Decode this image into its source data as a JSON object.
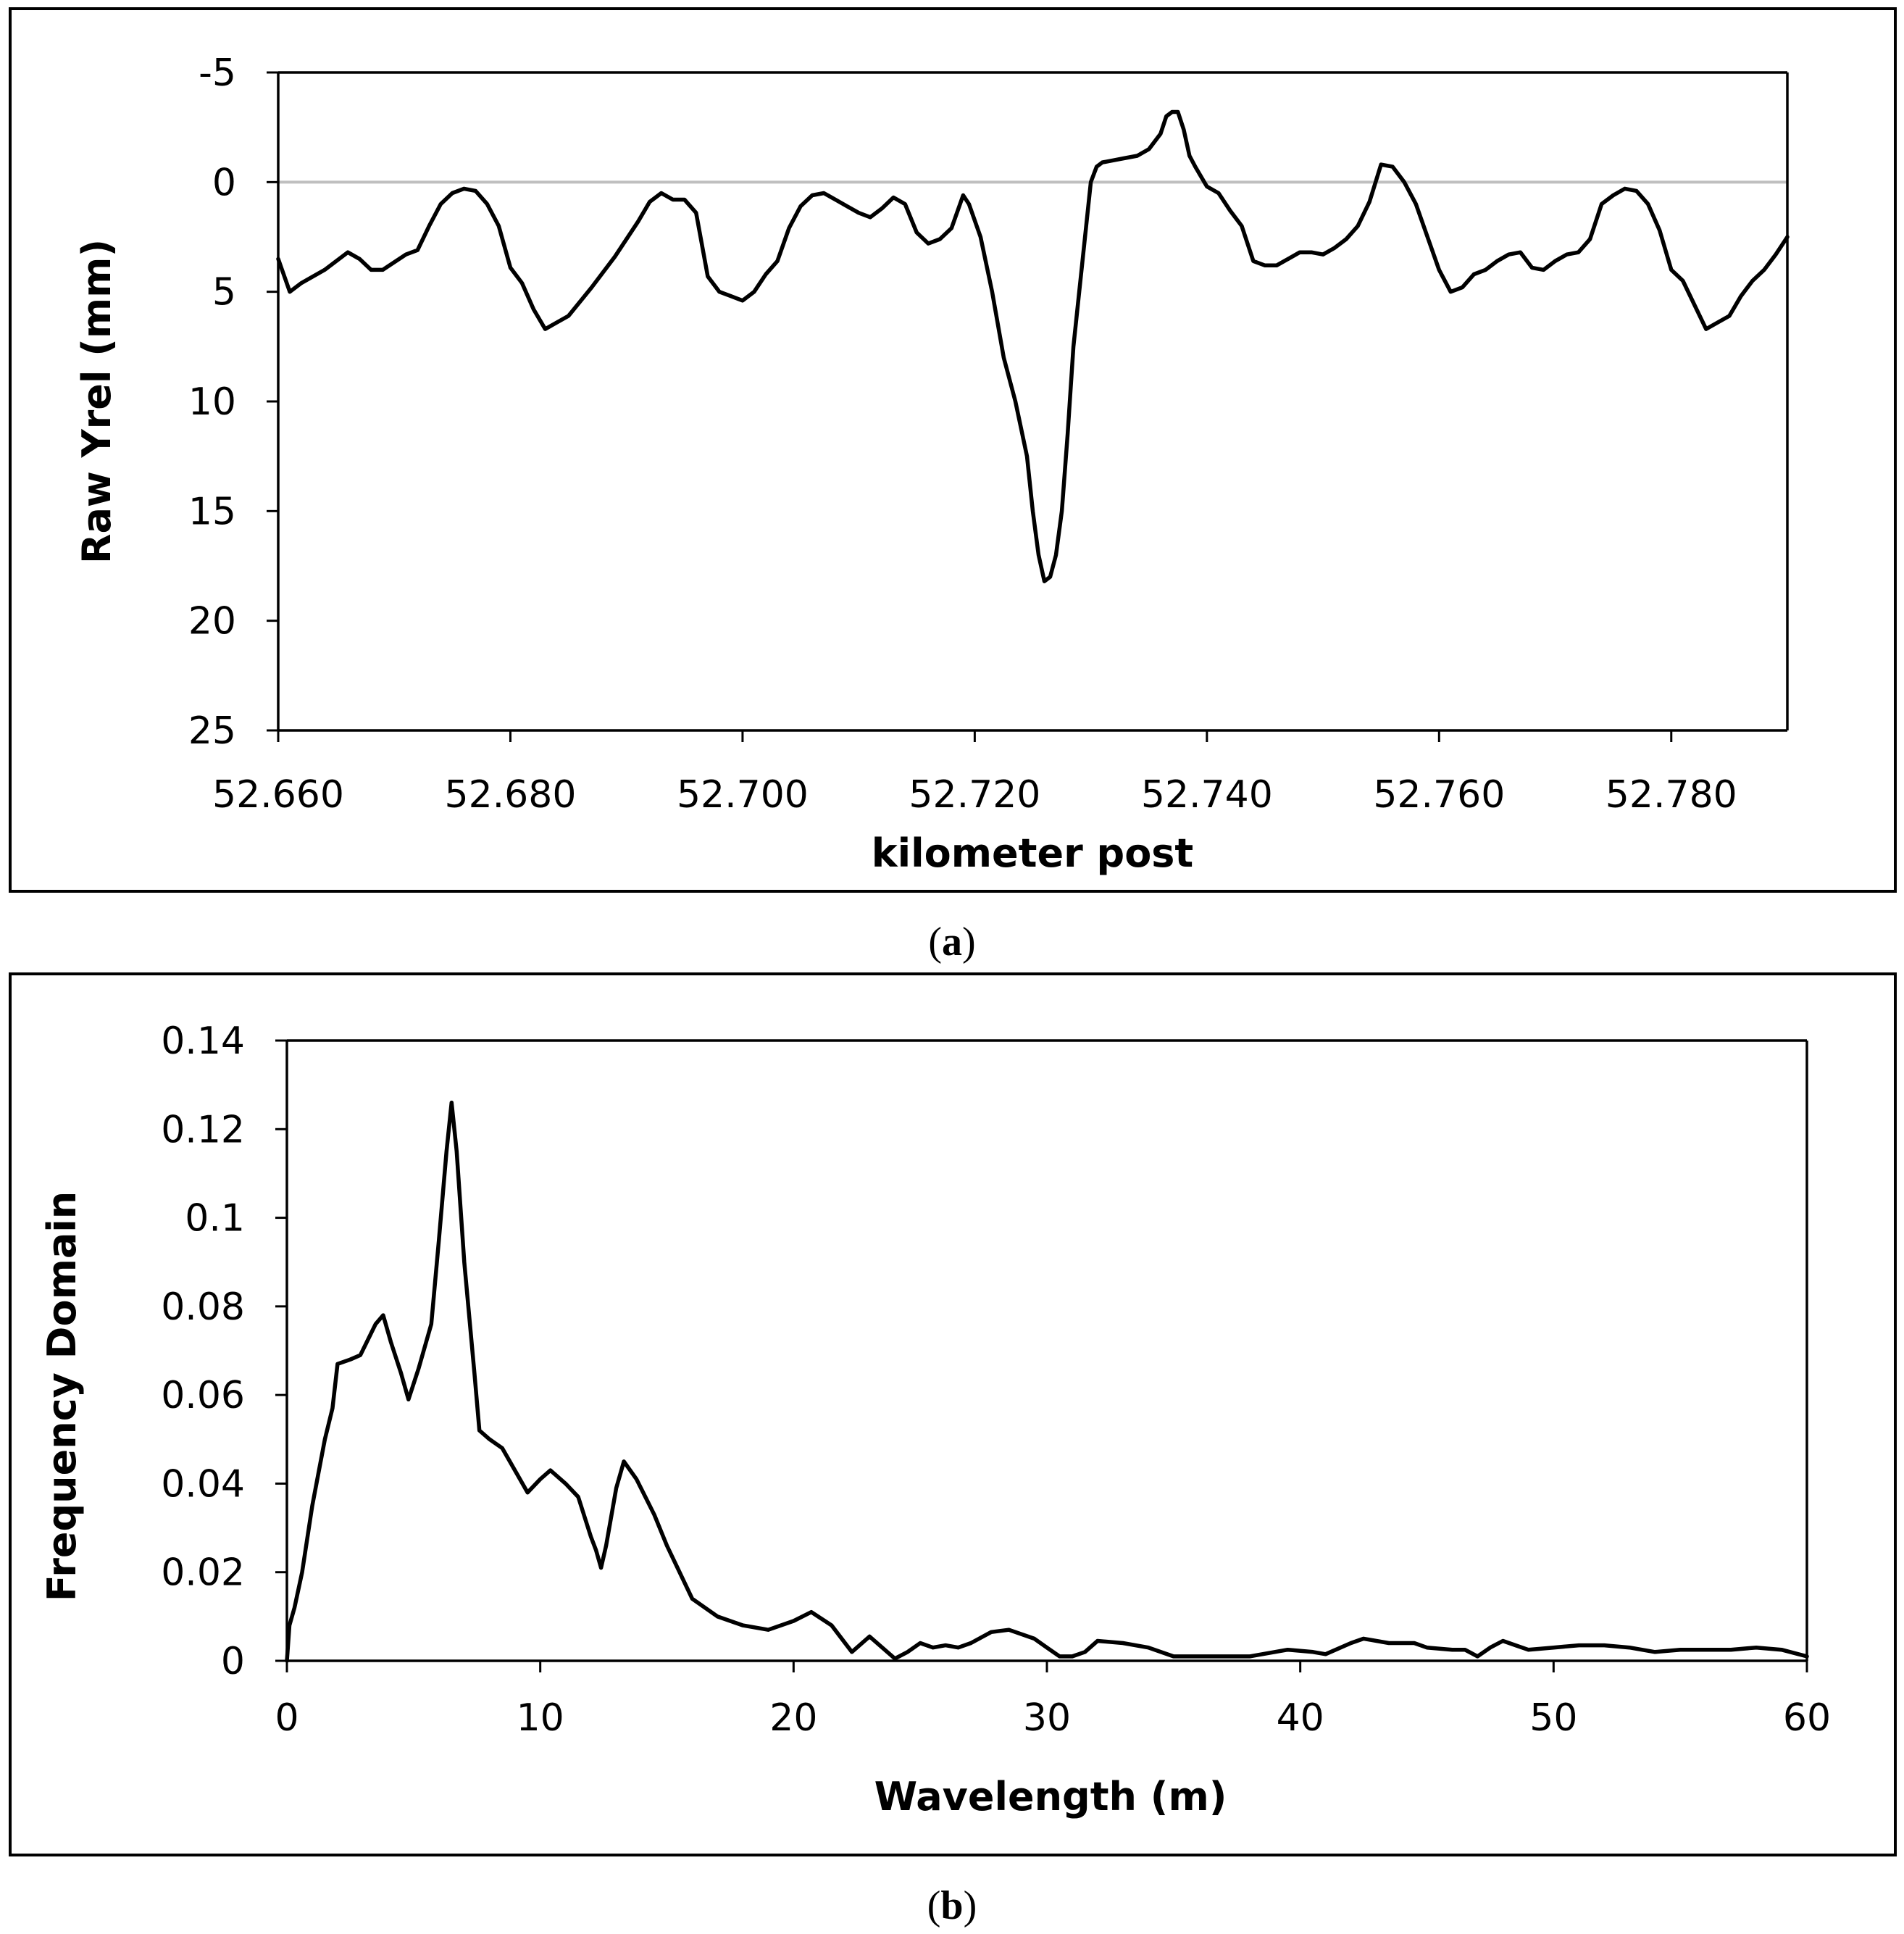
{
  "chart_data": [
    {
      "type": "line",
      "id": "a",
      "caption": {
        "open": "(",
        "letter": "a",
        "close": ")"
      },
      "xlabel": "kilometer post",
      "ylabel": "Raw Yrel (mm)",
      "xlim": [
        52.66,
        52.79
      ],
      "ylim": [
        -5,
        25
      ],
      "y_inverted": true,
      "xticks": [
        52.66,
        52.68,
        52.7,
        52.72,
        52.74,
        52.76,
        52.78
      ],
      "xtick_labels": [
        "52.660",
        "52.680",
        "52.700",
        "52.720",
        "52.740",
        "52.760",
        "52.780"
      ],
      "yticks": [
        -5,
        0,
        5,
        10,
        15,
        20,
        25
      ],
      "ytick_labels": [
        "-5",
        "0",
        "5",
        "10",
        "15",
        "20",
        "25"
      ],
      "reference_line_y": 0,
      "colors": {
        "series": "#000000",
        "reference": "#bfbfbf"
      },
      "series": [
        {
          "name": "Raw Yrel",
          "x": [
            52.66,
            52.661,
            52.662,
            52.664,
            52.666,
            52.667,
            52.668,
            52.669,
            52.671,
            52.672,
            52.673,
            52.674,
            52.675,
            52.676,
            52.677,
            52.678,
            52.679,
            52.68,
            52.681,
            52.682,
            52.683,
            52.684,
            52.685,
            52.687,
            52.689,
            52.691,
            52.692,
            52.693,
            52.694,
            52.695,
            52.696,
            52.697,
            52.698,
            52.699,
            52.7,
            52.701,
            52.702,
            52.703,
            52.704,
            52.705,
            52.706,
            52.707,
            52.708,
            52.709,
            52.71,
            52.711,
            52.712,
            52.713,
            52.714,
            52.715,
            52.716,
            52.717,
            52.718,
            52.719,
            52.7195,
            52.7205,
            52.7215,
            52.7225,
            52.7235,
            52.7245,
            52.725,
            52.7255,
            52.726,
            52.7265,
            52.727,
            52.7275,
            52.728,
            52.7285,
            52.729,
            52.7295,
            52.73,
            52.7305,
            52.731,
            52.732,
            52.733,
            52.734,
            52.735,
            52.736,
            52.7365,
            52.737,
            52.7375,
            52.738,
            52.7385,
            52.739,
            52.74,
            52.741,
            52.742,
            52.743,
            52.744,
            52.745,
            52.746,
            52.747,
            52.748,
            52.749,
            52.75,
            52.751,
            52.752,
            52.753,
            52.754,
            52.755,
            52.756,
            52.757,
            52.758,
            52.759,
            52.76,
            52.761,
            52.762,
            52.763,
            52.764,
            52.765,
            52.766,
            52.767,
            52.768,
            52.769,
            52.77,
            52.771,
            52.772,
            52.773,
            52.774,
            52.775,
            52.776,
            52.777,
            52.778,
            52.779,
            52.78,
            52.781,
            52.782,
            52.783,
            52.784,
            52.785,
            52.786,
            52.787,
            52.788,
            52.789,
            52.79
          ],
          "y": [
            3.5,
            5.0,
            4.6,
            4.0,
            3.2,
            3.5,
            4.0,
            4.0,
            3.3,
            3.1,
            2.0,
            1.0,
            0.5,
            0.3,
            0.4,
            1.0,
            2.0,
            3.9,
            4.6,
            5.8,
            6.7,
            6.4,
            6.1,
            4.8,
            3.4,
            1.8,
            0.9,
            0.5,
            0.8,
            0.8,
            1.4,
            4.3,
            5.0,
            5.2,
            5.4,
            5.0,
            4.2,
            3.6,
            2.1,
            1.1,
            0.6,
            0.5,
            0.8,
            1.1,
            1.4,
            1.6,
            1.2,
            0.7,
            1.0,
            2.3,
            2.8,
            2.6,
            2.1,
            0.6,
            1.0,
            2.5,
            5.0,
            8.0,
            10.0,
            12.5,
            15.0,
            17.0,
            18.2,
            18.0,
            17.0,
            15.0,
            11.5,
            7.5,
            5.0,
            2.5,
            0.0,
            -0.7,
            -0.9,
            -1.0,
            -1.1,
            -1.2,
            -1.5,
            -2.2,
            -3.0,
            -3.2,
            -3.2,
            -2.4,
            -1.2,
            -0.7,
            0.2,
            0.5,
            1.3,
            2.0,
            3.6,
            3.8,
            3.8,
            3.5,
            3.2,
            3.2,
            3.3,
            3.0,
            2.6,
            2.0,
            0.9,
            -0.8,
            -0.7,
            0.0,
            1.0,
            2.5,
            4.0,
            5.0,
            4.8,
            4.2,
            4.0,
            3.6,
            3.3,
            3.2,
            3.9,
            4.0,
            3.6,
            3.3,
            3.2,
            2.6,
            1.0,
            0.6,
            0.3,
            0.4,
            1.0,
            2.2,
            4.0,
            4.5,
            5.6,
            6.7,
            6.4,
            6.1,
            5.2,
            4.5,
            4.0,
            3.3,
            2.5
          ]
        }
      ]
    },
    {
      "type": "line",
      "id": "b",
      "caption": {
        "open": "(",
        "letter": "b",
        "close": ")"
      },
      "xlabel": "Wavelength (m)",
      "ylabel": "Frequency Domain",
      "xlim": [
        0,
        60
      ],
      "ylim": [
        0,
        0.14
      ],
      "xticks": [
        0,
        10,
        20,
        30,
        40,
        50,
        60
      ],
      "xtick_labels": [
        "0",
        "10",
        "20",
        "30",
        "40",
        "50",
        "60"
      ],
      "yticks": [
        0,
        0.02,
        0.04,
        0.06,
        0.08,
        0.1,
        0.12,
        0.14
      ],
      "ytick_labels": [
        "0",
        "0.02",
        "0.04",
        "0.06",
        "0.08",
        "0.1",
        "0.12",
        "0.14"
      ],
      "colors": {
        "series": "#000000"
      },
      "series": [
        {
          "name": "Frequency Domain",
          "x": [
            0.0,
            0.1,
            0.3,
            0.6,
            1.0,
            1.5,
            1.8,
            2.0,
            2.5,
            2.9,
            3.5,
            3.8,
            4.1,
            4.5,
            4.8,
            5.2,
            5.7,
            6.0,
            6.3,
            6.5,
            6.7,
            7.0,
            7.4,
            7.6,
            8.0,
            8.5,
            9.0,
            9.5,
            10.0,
            10.4,
            11.0,
            11.5,
            12.0,
            12.2,
            12.4,
            12.6,
            13.0,
            13.3,
            13.8,
            14.5,
            15.0,
            16.0,
            17.0,
            18.0,
            19.0,
            20.0,
            20.7,
            21.5,
            22.3,
            23.0,
            23.7,
            24.0,
            24.5,
            25.0,
            25.5,
            26.0,
            26.5,
            27.0,
            27.8,
            28.5,
            29.5,
            30.0,
            30.5,
            31.0,
            31.5,
            32.0,
            33.0,
            34.0,
            35.0,
            36.0,
            37.0,
            38.0,
            39.5,
            40.5,
            41.0,
            42.0,
            42.5,
            43.5,
            44.5,
            45.0,
            46.0,
            46.5,
            47.0,
            47.5,
            48.0,
            48.5,
            49.0,
            50.0,
            51.0,
            52.0,
            53.0,
            54.0,
            55.0,
            56.0,
            57.0,
            58.0,
            59.0,
            60.0
          ],
          "y": [
            0.0,
            0.008,
            0.012,
            0.02,
            0.035,
            0.05,
            0.057,
            0.067,
            0.068,
            0.069,
            0.076,
            0.078,
            0.072,
            0.065,
            0.059,
            0.066,
            0.076,
            0.095,
            0.115,
            0.126,
            0.115,
            0.09,
            0.065,
            0.052,
            0.05,
            0.048,
            0.043,
            0.038,
            0.041,
            0.043,
            0.04,
            0.037,
            0.028,
            0.025,
            0.021,
            0.026,
            0.039,
            0.045,
            0.041,
            0.033,
            0.026,
            0.014,
            0.01,
            0.008,
            0.007,
            0.009,
            0.011,
            0.008,
            0.002,
            0.0055,
            0.002,
            0.0005,
            0.002,
            0.004,
            0.003,
            0.0035,
            0.003,
            0.004,
            0.0065,
            0.007,
            0.005,
            0.003,
            0.001,
            0.001,
            0.002,
            0.0045,
            0.004,
            0.003,
            0.001,
            0.001,
            0.001,
            0.001,
            0.0025,
            0.002,
            0.0015,
            0.004,
            0.005,
            0.004,
            0.004,
            0.003,
            0.0025,
            0.0025,
            0.001,
            0.003,
            0.0045,
            0.0035,
            0.0025,
            0.003,
            0.0035,
            0.0035,
            0.003,
            0.002,
            0.0025,
            0.0025,
            0.0025,
            0.003,
            0.0025,
            0.001
          ]
        }
      ]
    }
  ]
}
